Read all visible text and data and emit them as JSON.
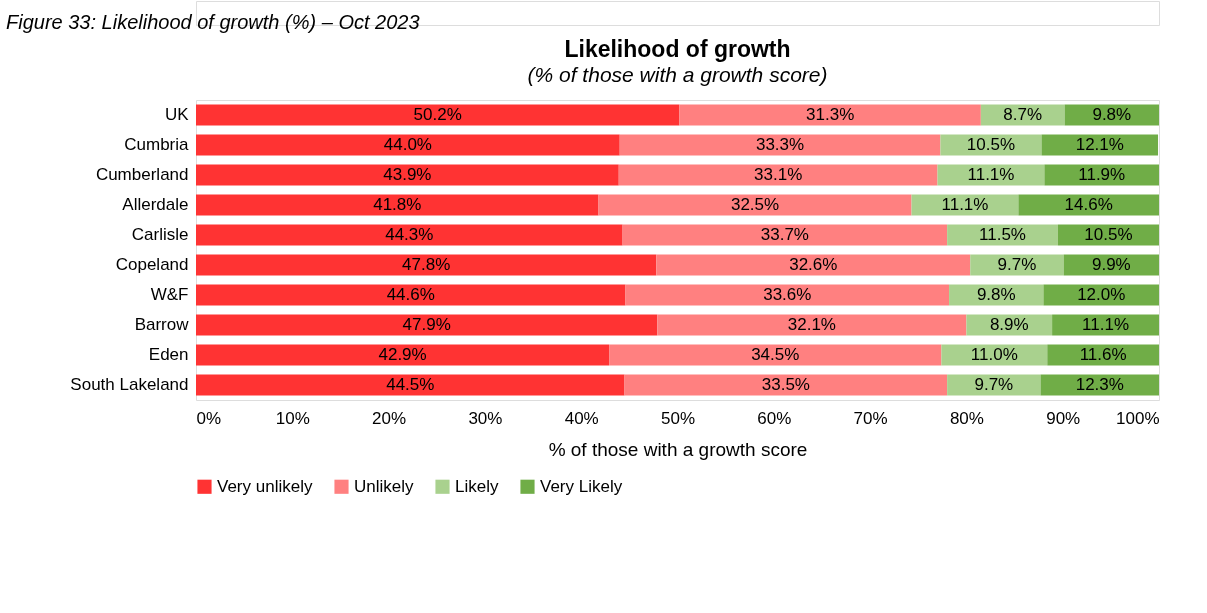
{
  "chart_data": {
    "type": "bar",
    "orientation": "horizontal",
    "stacked": true,
    "title": "Likelihood of growth",
    "subtitle": "(% of those with a growth score)",
    "xlabel": "% of those with a growth score",
    "annotations": [
      "Figure 33: Likelihood of growth (%) – Oct 2023"
    ],
    "categories": [
      "UK",
      "Cumbria",
      "Cumberland",
      "Allerdale",
      "Carlisle",
      "Copeland",
      "W&F",
      "Barrow",
      "Eden",
      "South Lakeland"
    ],
    "series": [
      {
        "name": "Very unlikely",
        "color": "#ff3333",
        "values": [
          50.2,
          44.0,
          43.9,
          41.8,
          44.3,
          47.8,
          44.6,
          47.9,
          42.9,
          44.5
        ],
        "value_labels": [
          "50.2%",
          "44.0%",
          "43.9%",
          "41.8%",
          "44.3%",
          "47.8%",
          "44.6%",
          "47.9%",
          "42.9%",
          "44.5%"
        ]
      },
      {
        "name": "Unlikely",
        "color": "#ff8080",
        "values": [
          31.3,
          33.3,
          33.1,
          32.5,
          33.7,
          32.6,
          33.6,
          32.1,
          34.5,
          33.5
        ],
        "value_labels": [
          "31.3%",
          "33.3%",
          "33.1%",
          "32.5%",
          "33.7%",
          "32.6%",
          "33.6%",
          "32.1%",
          "34.5%",
          "33.5%"
        ]
      },
      {
        "name": "Likely",
        "color": "#a9d18e",
        "values": [
          8.7,
          10.5,
          11.1,
          11.1,
          11.5,
          9.7,
          9.8,
          8.9,
          11.0,
          9.7
        ],
        "value_labels": [
          "8.7%",
          "10.5%",
          "11.1%",
          "11.1%",
          "11.5%",
          "9.7%",
          "9.8%",
          "8.9%",
          "11.0%",
          "9.7%"
        ]
      },
      {
        "name": "Very Likely",
        "color": "#70ad47",
        "values": [
          9.8,
          12.1,
          11.9,
          14.6,
          10.5,
          9.9,
          12.0,
          11.1,
          11.6,
          12.3
        ],
        "value_labels": [
          "9.8%",
          "12.1%",
          "11.9%",
          "14.6%",
          "10.5%",
          "9.9%",
          "12.0%",
          "11.1%",
          "11.6%",
          "12.3%"
        ]
      }
    ],
    "xlim": [
      0,
      100
    ],
    "xticks": [
      {
        "value": 0,
        "label": "0%"
      },
      {
        "value": 10,
        "label": "10%"
      },
      {
        "value": 20,
        "label": "20%"
      },
      {
        "value": 30,
        "label": "30%"
      },
      {
        "value": 40,
        "label": "40%"
      },
      {
        "value": 50,
        "label": "50%"
      },
      {
        "value": 60,
        "label": "60%"
      },
      {
        "value": 70,
        "label": "70%"
      },
      {
        "value": 80,
        "label": "80%"
      },
      {
        "value": 90,
        "label": "90%"
      },
      {
        "value": 100,
        "label": "100%"
      }
    ],
    "grid": false,
    "legend": "bottom"
  }
}
